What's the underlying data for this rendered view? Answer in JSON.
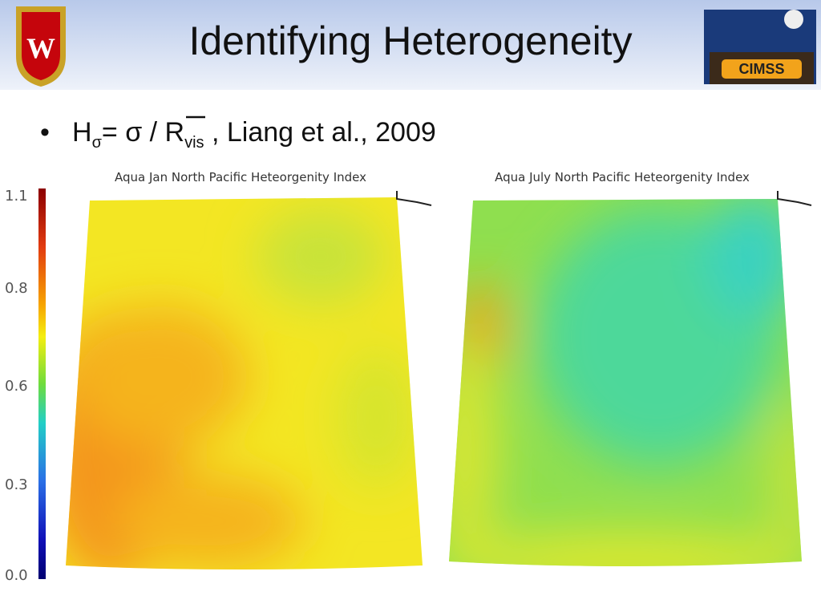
{
  "header": {
    "title": "Identifying Heterogeneity",
    "logo_text": "CIMSS"
  },
  "bullet": {
    "symbol": "H",
    "symbol_sub": "σ",
    "equation": "= σ / ",
    "ratio": "R",
    "ratio_sub": "vis",
    "citation": " , Liang et al., 2009"
  },
  "colorbar": {
    "labels": [
      "1.1",
      "0.8",
      "0.6",
      "0.3",
      "0.0"
    ]
  },
  "panels": [
    {
      "title": "Aqua Jan North Pacific Heteorgenity Index"
    },
    {
      "title": "Aqua July North Pacific Heteorgenity Index"
    }
  ]
}
